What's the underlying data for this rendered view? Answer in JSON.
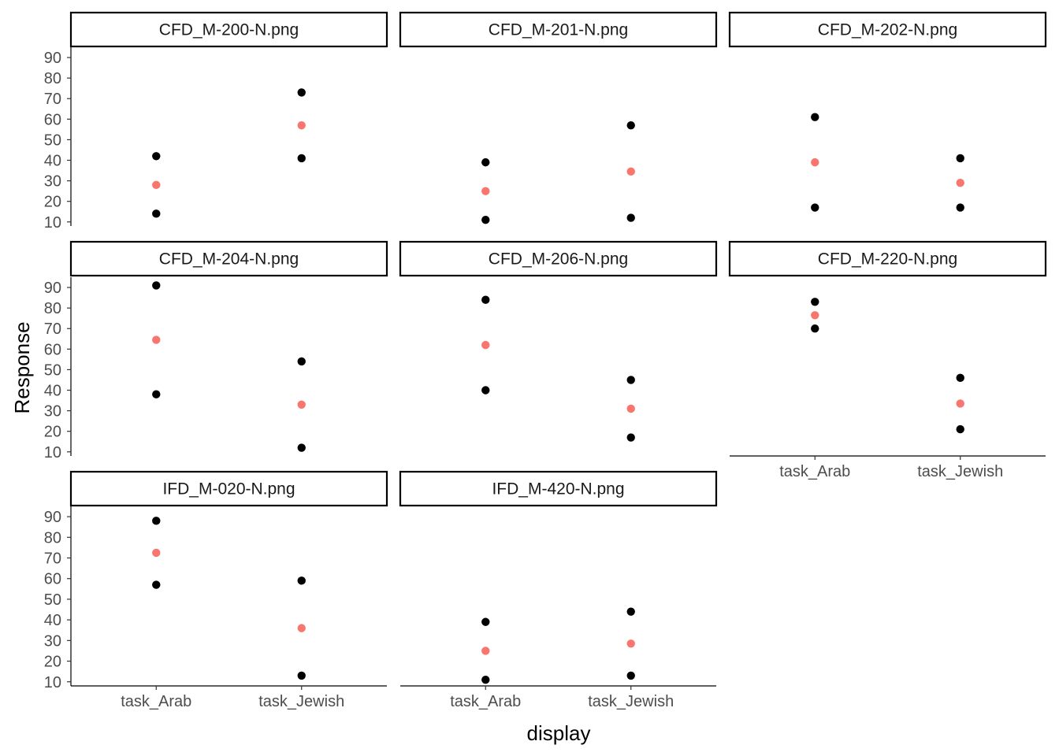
{
  "chart_data": {
    "type": "scatter",
    "xlabel": "display",
    "ylabel": "Response",
    "categories": [
      "task_Arab",
      "task_Jewish"
    ],
    "y_ticks": [
      10,
      20,
      30,
      40,
      50,
      60,
      70,
      80,
      90
    ],
    "ylim": [
      8,
      95
    ],
    "grid": false,
    "colors": {
      "individual": "#000000",
      "mean": "#F8766D"
    },
    "panels": [
      {
        "title": "CFD_M-200-N.png",
        "points": [
          {
            "category": "task_Arab",
            "values": [
              42,
              14
            ],
            "mean": 28
          },
          {
            "category": "task_Jewish",
            "values": [
              73,
              41
            ],
            "mean": 57
          }
        ]
      },
      {
        "title": "CFD_M-201-N.png",
        "points": [
          {
            "category": "task_Arab",
            "values": [
              39,
              11
            ],
            "mean": 25
          },
          {
            "category": "task_Jewish",
            "values": [
              57,
              12
            ],
            "mean": 34.5
          }
        ]
      },
      {
        "title": "CFD_M-202-N.png",
        "points": [
          {
            "category": "task_Arab",
            "values": [
              61,
              17
            ],
            "mean": 39
          },
          {
            "category": "task_Jewish",
            "values": [
              41,
              17
            ],
            "mean": 29
          }
        ]
      },
      {
        "title": "CFD_M-204-N.png",
        "points": [
          {
            "category": "task_Arab",
            "values": [
              91,
              38
            ],
            "mean": 64.5
          },
          {
            "category": "task_Jewish",
            "values": [
              54,
              12
            ],
            "mean": 33
          }
        ]
      },
      {
        "title": "CFD_M-206-N.png",
        "points": [
          {
            "category": "task_Arab",
            "values": [
              84,
              40
            ],
            "mean": 62
          },
          {
            "category": "task_Jewish",
            "values": [
              45,
              17
            ],
            "mean": 31
          }
        ]
      },
      {
        "title": "CFD_M-220-N.png",
        "points": [
          {
            "category": "task_Arab",
            "values": [
              83,
              70
            ],
            "mean": 76.5
          },
          {
            "category": "task_Jewish",
            "values": [
              46,
              21
            ],
            "mean": 33.5
          }
        ]
      },
      {
        "title": "IFD_M-020-N.png",
        "points": [
          {
            "category": "task_Arab",
            "values": [
              88,
              57
            ],
            "mean": 72.5
          },
          {
            "category": "task_Jewish",
            "values": [
              59,
              13
            ],
            "mean": 36
          }
        ]
      },
      {
        "title": "IFD_M-420-N.png",
        "points": [
          {
            "category": "task_Arab",
            "values": [
              39,
              11
            ],
            "mean": 25
          },
          {
            "category": "task_Jewish",
            "values": [
              44,
              13
            ],
            "mean": 28.5
          }
        ]
      }
    ]
  }
}
